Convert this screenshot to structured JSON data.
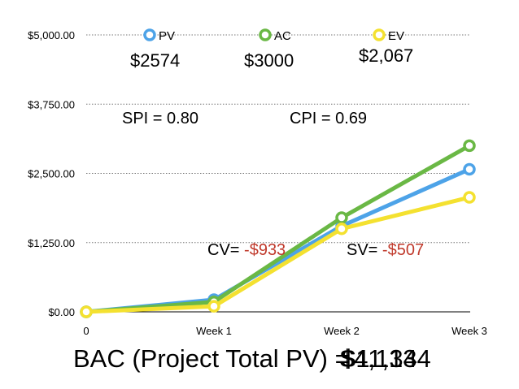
{
  "chart_data": {
    "type": "line",
    "categories": [
      "0",
      "Week 1",
      "Week 2",
      "Week 3"
    ],
    "ylim": [
      0,
      5000
    ],
    "yticks": [
      "$0.00",
      "$1,250.00",
      "$2,500.00",
      "$3,750.00",
      "$5,000.00"
    ],
    "ytick_values": [
      0,
      1250,
      2500,
      3750,
      5000
    ],
    "grid": true,
    "legend_position": "top",
    "series": [
      {
        "name": "PV",
        "color": "#4da3e8",
        "values": [
          0,
          220,
          1550,
          2574
        ]
      },
      {
        "name": "AC",
        "color": "#6ab845",
        "values": [
          0,
          180,
          1700,
          3000
        ]
      },
      {
        "name": "EV",
        "color": "#f4e130",
        "values": [
          0,
          100,
          1500,
          2067
        ]
      }
    ]
  },
  "annotations": {
    "pv_value": "$2574",
    "ac_value": "$3000",
    "ev_value": "$2,067",
    "spi": "SPI = 0.80",
    "cpi": "CPI = 0.69",
    "cv_label": "CV= ",
    "cv_value": "-$933",
    "sv_label": "SV= ",
    "sv_value": "-$507"
  },
  "bac": {
    "label": "BAC (Project Total PV) = ",
    "value_a": "$4,134",
    "value_b": "$11,134"
  }
}
